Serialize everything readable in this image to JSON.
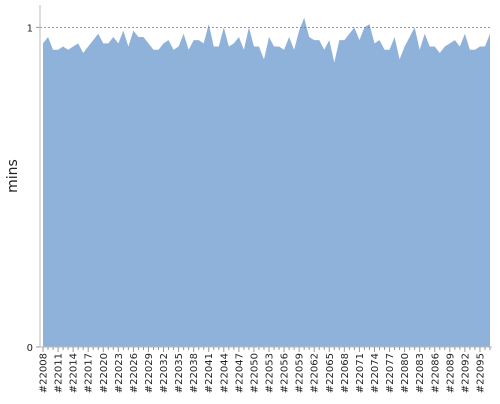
{
  "chart_data": {
    "type": "area",
    "y_label": "mins",
    "color": "#8fb2db",
    "categories": [
      "#22008",
      null,
      null,
      "#22011",
      null,
      null,
      "#22014",
      null,
      null,
      "#22017",
      null,
      null,
      "#22020",
      null,
      null,
      "#22023",
      null,
      null,
      "#22026",
      null,
      null,
      "#22029",
      null,
      null,
      "#22032",
      null,
      null,
      "#22035",
      null,
      null,
      "#22038",
      null,
      null,
      "#22041",
      null,
      null,
      "#22044",
      null,
      null,
      "#22047",
      null,
      null,
      "#22050",
      null,
      null,
      "#22053",
      null,
      null,
      "#22056",
      null,
      null,
      "#22059",
      null,
      null,
      "#22062",
      null,
      null,
      "#22065",
      null,
      null,
      "#22068",
      null,
      null,
      "#22071",
      null,
      null,
      "#22074",
      null,
      null,
      "#22077",
      null,
      null,
      "#22080",
      null,
      null,
      "#22083",
      null,
      null,
      "#22086",
      null,
      null,
      "#22089",
      null,
      null,
      "#22092",
      null,
      null,
      "#22095",
      null,
      null
    ],
    "values": [
      0.95,
      0.97,
      0.93,
      0.93,
      0.94,
      0.93,
      0.94,
      0.95,
      0.92,
      0.94,
      0.96,
      0.98,
      0.95,
      0.95,
      0.97,
      0.95,
      0.99,
      0.94,
      0.99,
      0.97,
      0.97,
      0.95,
      0.93,
      0.93,
      0.95,
      0.96,
      0.93,
      0.94,
      0.98,
      0.93,
      0.96,
      0.96,
      0.95,
      1.01,
      0.94,
      0.94,
      1.0,
      0.94,
      0.95,
      0.97,
      0.93,
      1.0,
      0.94,
      0.94,
      0.9,
      0.97,
      0.94,
      0.94,
      0.93,
      0.97,
      0.93,
      0.99,
      1.03,
      0.97,
      0.96,
      0.96,
      0.93,
      0.96,
      0.89,
      0.96,
      0.96,
      0.98,
      1.0,
      0.96,
      1.0,
      1.01,
      0.95,
      0.96,
      0.93,
      0.93,
      0.97,
      0.9,
      0.94,
      0.97,
      1.0,
      0.93,
      0.98,
      0.94,
      0.94,
      0.92,
      0.94,
      0.95,
      0.96,
      0.94,
      0.98,
      0.93,
      0.93,
      0.94,
      0.94,
      0.98
    ],
    "ylim": [
      0,
      1.07
    ],
    "yticks": [
      0,
      1
    ],
    "grid": true
  }
}
